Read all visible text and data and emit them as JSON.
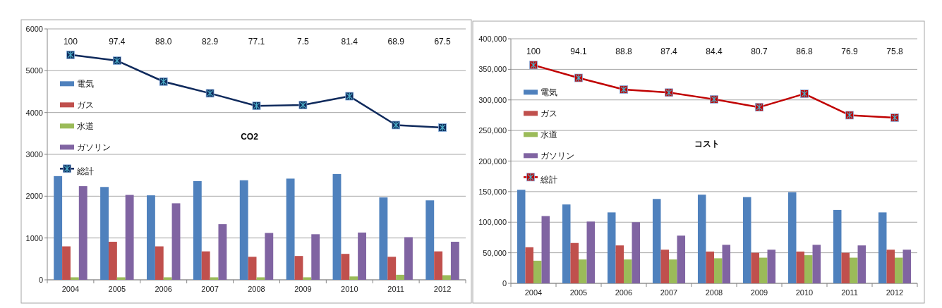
{
  "chart_data": [
    {
      "type": "bar",
      "title": "CO2",
      "categories": [
        "2004",
        "2005",
        "2006",
        "2007",
        "2008",
        "2009",
        "2010",
        "2011",
        "2012"
      ],
      "ylim": [
        0,
        6000
      ],
      "yticks": [
        0,
        1000,
        2000,
        3000,
        4000,
        5000,
        6000
      ],
      "grid": "y",
      "legend": "left",
      "series": [
        {
          "name": "電気",
          "color": "#4f81bd",
          "values": [
            2480,
            2220,
            2020,
            2360,
            2380,
            2420,
            2530,
            1970,
            1900
          ]
        },
        {
          "name": "ガス",
          "color": "#c0504d",
          "values": [
            800,
            910,
            800,
            680,
            550,
            570,
            620,
            550,
            680
          ]
        },
        {
          "name": "水道",
          "color": "#9bbb59",
          "values": [
            60,
            60,
            60,
            60,
            60,
            60,
            80,
            120,
            110
          ]
        },
        {
          "name": "ガソリン",
          "color": "#8064a2",
          "values": [
            2240,
            2030,
            1830,
            1330,
            1120,
            1090,
            1130,
            1020,
            910
          ]
        },
        {
          "name": "総計",
          "type": "line",
          "color": "#0f2a5c",
          "marker": "square",
          "values": [
            5380,
            5240,
            4740,
            4460,
            4160,
            4180,
            4390,
            3700,
            3640
          ]
        }
      ],
      "annotations": [
        "100",
        "97.4",
        "88.0",
        "82.9",
        "77.1",
        "7.5",
        "81.4",
        "68.9",
        "67.5"
      ]
    },
    {
      "type": "bar",
      "title": "コスト",
      "categories": [
        "2004",
        "2005",
        "2006",
        "2007",
        "2008",
        "2009",
        "2010",
        "2011",
        "2012"
      ],
      "ylim": [
        0,
        400000
      ],
      "yticks": [
        {
          "value": 0,
          "label": "0"
        },
        {
          "value": 50000,
          "label": "50,000"
        },
        {
          "value": 100000,
          "label": "100,000"
        },
        {
          "value": 150000,
          "label": "150,000"
        },
        {
          "value": 200000,
          "label": "200,000"
        },
        {
          "value": 250000,
          "label": "250,000"
        },
        {
          "value": 300000,
          "label": "300,000"
        },
        {
          "value": 350000,
          "label": "350,000"
        },
        {
          "value": 400000,
          "label": "400,000"
        }
      ],
      "grid": "y",
      "legend": "left",
      "series": [
        {
          "name": "電気",
          "color": "#4f81bd",
          "values": [
            153000,
            129000,
            116000,
            138000,
            145000,
            141000,
            149000,
            120000,
            116000
          ]
        },
        {
          "name": "ガス",
          "color": "#c0504d",
          "values": [
            59000,
            66000,
            62000,
            55000,
            52000,
            50000,
            52000,
            50000,
            55000
          ]
        },
        {
          "name": "水道",
          "color": "#9bbb59",
          "values": [
            37000,
            39000,
            39000,
            39000,
            41000,
            42000,
            46000,
            42000,
            42000
          ]
        },
        {
          "name": "ガソリン",
          "color": "#8064a2",
          "values": [
            110000,
            101000,
            100000,
            78000,
            63000,
            55000,
            63000,
            62000,
            55000
          ]
        },
        {
          "name": "総計",
          "type": "line",
          "color": "#c00000",
          "marker": "square",
          "values": [
            357000,
            336000,
            317000,
            312000,
            301000,
            288000,
            310000,
            275000,
            271000
          ]
        }
      ],
      "annotations": [
        "100",
        "94.1",
        "88.8",
        "87.4",
        "84.4",
        "80.7",
        "86.8",
        "76.9",
        "75.8"
      ]
    }
  ]
}
